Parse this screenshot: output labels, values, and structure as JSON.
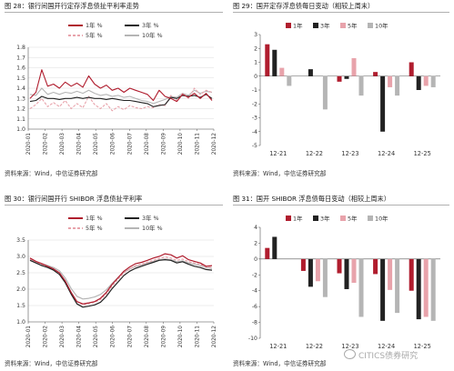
{
  "source_label": "资料来源：Wind，中信证券研究部",
  "watermark": "CITICS债券研究",
  "colors": {
    "y1": "#b01d2e",
    "y3": "#222222",
    "y5": "#e8a3ab",
    "y10": "#b5b5b5",
    "grid": "#dcdcdc",
    "axis": "#555555"
  },
  "chart_data": [
    {
      "id": "fig28",
      "title": "图 28：银行间国开行定存浮息债扯平利率走势",
      "type": "line",
      "x_ticks": [
        "2020-01",
        "2020-02",
        "2020-03",
        "2020-04",
        "2020-05",
        "2020-06",
        "2020-07",
        "2020-08",
        "2020-09",
        "2020-10",
        "2020-11",
        "2020-12"
      ],
      "ylim": [
        1.0,
        1.8
      ],
      "yticks": [
        "1.8",
        "1.7",
        "1.6",
        "1.5",
        "1.4",
        "1.3",
        "1.2",
        "1.1",
        "1.0"
      ],
      "legend": [
        "1年 %",
        "3年 %",
        "5年 %",
        "10年 %"
      ],
      "series": [
        {
          "name": "1年 %",
          "key": "y1",
          "dash": false,
          "width": 1.1,
          "values": [
            1.3,
            1.36,
            1.58,
            1.42,
            1.44,
            1.4,
            1.46,
            1.42,
            1.45,
            1.41,
            1.52,
            1.44,
            1.4,
            1.43,
            1.38,
            1.4,
            1.36,
            1.4,
            1.38,
            1.36,
            1.34,
            1.28,
            1.38,
            1.32,
            1.3,
            1.27,
            1.34,
            1.31,
            1.35,
            1.3,
            1.35,
            1.28
          ]
        },
        {
          "name": "3年 %",
          "key": "y3",
          "dash": false,
          "width": 1.1,
          "values": [
            1.27,
            1.28,
            1.32,
            1.3,
            1.3,
            1.29,
            1.3,
            1.3,
            1.31,
            1.3,
            1.31,
            1.3,
            1.3,
            1.29,
            1.3,
            1.29,
            1.28,
            1.28,
            1.27,
            1.26,
            1.25,
            1.22,
            1.23,
            1.24,
            1.31,
            1.3,
            1.33,
            1.32,
            1.33,
            1.31,
            1.34,
            1.3
          ]
        },
        {
          "name": "5年 %",
          "key": "y5",
          "dash": true,
          "width": 1.1,
          "values": [
            1.2,
            1.24,
            1.3,
            1.22,
            1.26,
            1.22,
            1.28,
            1.2,
            1.25,
            1.21,
            1.32,
            1.24,
            1.2,
            1.25,
            1.18,
            1.22,
            1.19,
            1.23,
            1.21,
            1.2,
            1.22,
            1.21,
            1.24,
            1.23,
            1.33,
            1.28,
            1.35,
            1.3,
            1.4,
            1.34,
            1.38,
            1.36
          ]
        },
        {
          "name": "10年 %",
          "key": "y10",
          "dash": false,
          "width": 1.1,
          "values": [
            1.34,
            1.33,
            1.4,
            1.34,
            1.36,
            1.34,
            1.36,
            1.35,
            1.37,
            1.35,
            1.38,
            1.35,
            1.33,
            1.34,
            1.32,
            1.33,
            1.31,
            1.32,
            1.3,
            1.28,
            1.27,
            1.25,
            1.27,
            1.29,
            1.32,
            1.31,
            1.35,
            1.33,
            1.38,
            1.35,
            1.37,
            1.36
          ]
        }
      ]
    },
    {
      "id": "fig29",
      "title": "图 29：国开定存浮息债每日变动（相较上周末）",
      "type": "bar",
      "categories": [
        "12-21",
        "12-22",
        "12-23",
        "12-24",
        "12-25"
      ],
      "ylim": [
        -5,
        3
      ],
      "yticks": [
        "3",
        "2",
        "1",
        "0",
        "-1",
        "-2",
        "-3",
        "-4",
        "-5"
      ],
      "legend": [
        "1年",
        "3年",
        "5年",
        "10年"
      ],
      "series": [
        {
          "name": "1年",
          "key": "y1",
          "values": [
            2.3,
            0.0,
            -0.4,
            0.3,
            1.0
          ]
        },
        {
          "name": "3年",
          "key": "y3",
          "values": [
            1.9,
            0.5,
            -0.2,
            -4.0,
            -1.0
          ]
        },
        {
          "name": "5年",
          "key": "y5",
          "values": [
            0.6,
            0.0,
            1.3,
            -0.8,
            -0.7
          ]
        },
        {
          "name": "10年",
          "key": "y10",
          "values": [
            -0.7,
            -2.4,
            -1.4,
            -1.4,
            -0.8
          ]
        }
      ]
    },
    {
      "id": "fig30",
      "title": "图 30：银行间国开行 SHIBOR 浮息债扯平利率",
      "type": "line",
      "x_ticks": [
        "2020-01",
        "2020-02",
        "2020-03",
        "2020-04",
        "2020-05",
        "2020-06",
        "2020-07",
        "2020-08",
        "2020-09",
        "2020-10",
        "2020-11",
        "2020-12"
      ],
      "ylim": [
        1.0,
        3.5
      ],
      "yticks": [
        "3.5",
        "3.0",
        "2.5",
        "2.0",
        "1.5",
        "1.0"
      ],
      "legend": [
        "1年 %",
        "3年 %",
        "5年 %",
        "10年 %"
      ],
      "series": [
        {
          "name": "1年 %",
          "key": "y1",
          "dash": false,
          "width": 1.2,
          "values": [
            2.95,
            2.85,
            2.78,
            2.7,
            2.62,
            2.5,
            2.25,
            1.9,
            1.62,
            1.55,
            1.58,
            1.62,
            1.72,
            1.9,
            2.15,
            2.35,
            2.55,
            2.68,
            2.78,
            2.82,
            2.88,
            2.95,
            3.0,
            3.08,
            3.05,
            2.95,
            3.02,
            2.9,
            2.85,
            2.8,
            2.7,
            2.72
          ]
        },
        {
          "name": "3年 %",
          "key": "y3",
          "dash": false,
          "width": 1.2,
          "values": [
            2.88,
            2.8,
            2.72,
            2.66,
            2.58,
            2.45,
            2.2,
            1.85,
            1.55,
            1.45,
            1.48,
            1.52,
            1.6,
            1.78,
            2.02,
            2.22,
            2.42,
            2.55,
            2.64,
            2.7,
            2.76,
            2.82,
            2.88,
            2.9,
            2.88,
            2.8,
            2.84,
            2.76,
            2.7,
            2.66,
            2.6,
            2.58
          ]
        },
        {
          "name": "5年 %",
          "key": "y5",
          "dash": true,
          "width": 1.2,
          "values": [
            2.92,
            2.82,
            2.75,
            2.68,
            2.6,
            2.48,
            2.24,
            1.9,
            1.62,
            1.52,
            1.55,
            1.6,
            1.68,
            1.85,
            2.1,
            2.3,
            2.5,
            2.62,
            2.72,
            2.76,
            2.82,
            2.88,
            2.94,
            2.98,
            2.95,
            2.88,
            2.92,
            2.84,
            2.8,
            2.76,
            2.68,
            2.66
          ]
        },
        {
          "name": "10年 %",
          "key": "y10",
          "dash": false,
          "width": 1.2,
          "values": [
            2.9,
            2.84,
            2.78,
            2.72,
            2.66,
            2.56,
            2.34,
            2.02,
            1.78,
            1.7,
            1.72,
            1.76,
            1.84,
            1.98,
            2.18,
            2.36,
            2.52,
            2.62,
            2.7,
            2.74,
            2.8,
            2.85,
            2.9,
            2.92,
            2.9,
            2.84,
            2.86,
            2.8,
            2.76,
            2.72,
            2.66,
            2.64
          ]
        }
      ]
    },
    {
      "id": "fig31",
      "title": "图 31：国开 SHIBOR 浮息债每日变动（相较上周末）",
      "type": "bar",
      "categories": [
        "12-21",
        "12-22",
        "12-23",
        "12-24",
        "12-25"
      ],
      "ylim": [
        -10,
        4
      ],
      "yticks": [
        "4",
        "2",
        "0",
        "-2",
        "-4",
        "-6",
        "-8",
        "-10"
      ],
      "legend": [
        "1年",
        "3年",
        "5年",
        "10年"
      ],
      "series": [
        {
          "name": "1年",
          "key": "y1",
          "values": [
            1.4,
            -1.5,
            -1.8,
            -1.9,
            -4.0
          ]
        },
        {
          "name": "3年",
          "key": "y3",
          "values": [
            2.8,
            -3.5,
            -3.8,
            -7.8,
            -7.6
          ]
        },
        {
          "name": "5年",
          "key": "y5",
          "values": [
            0.0,
            -2.8,
            -3.0,
            -3.9,
            -7.3
          ]
        },
        {
          "name": "10年",
          "key": "y10",
          "values": [
            0.0,
            -4.8,
            -7.3,
            -6.8,
            -7.8
          ]
        }
      ]
    }
  ]
}
